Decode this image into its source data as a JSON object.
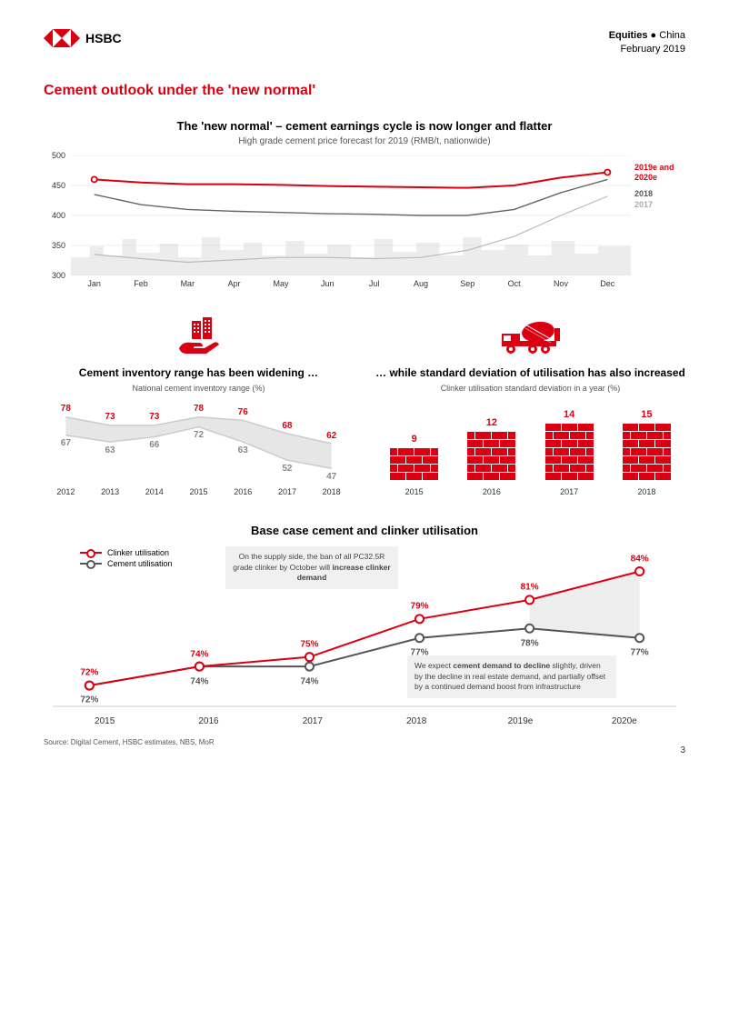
{
  "header": {
    "brand": "HSBC",
    "category": "Equities",
    "region": "China",
    "date": "February 2019"
  },
  "main_title": "Cement outlook under the 'new normal'",
  "chart1": {
    "title": "The 'new normal' – cement earnings cycle is now longer and flatter",
    "subtitle": "High grade cement price forecast for 2019 (RMB/t, nationwide)",
    "ylim": [
      300,
      500
    ],
    "yticks": [
      300,
      350,
      400,
      450,
      500
    ],
    "months": [
      "Jan",
      "Feb",
      "Mar",
      "Apr",
      "May",
      "Jun",
      "Jul",
      "Aug",
      "Sep",
      "Oct",
      "Nov",
      "Dec"
    ],
    "series_2019e": {
      "label": "2019e and 2020e",
      "color": "#db0011",
      "values": [
        460,
        455,
        452,
        452,
        451,
        449,
        448,
        447,
        446,
        450,
        463,
        472
      ]
    },
    "series_2018": {
      "label": "2018",
      "color": "#666666",
      "values": [
        435,
        418,
        410,
        407,
        405,
        403,
        402,
        400,
        400,
        410,
        438,
        460
      ]
    },
    "series_2017": {
      "label": "2017",
      "color": "#bbbbbb",
      "values": [
        335,
        328,
        322,
        326,
        330,
        330,
        328,
        330,
        342,
        365,
        400,
        432
      ]
    },
    "bg_silhouette_color": "#ececec"
  },
  "inventory": {
    "icon_name": "hand-buildings-icon",
    "title": "Cement inventory range has been widening …",
    "subtitle": "National cement inventory range (%)",
    "years": [
      "2012",
      "2013",
      "2014",
      "2015",
      "2016",
      "2017",
      "2018"
    ],
    "high": [
      78,
      73,
      73,
      78,
      76,
      68,
      62
    ],
    "low": [
      67,
      63,
      66,
      72,
      63,
      52,
      47
    ],
    "high_color": "#db0011",
    "low_color": "#888888",
    "fill_color": "#e6e6e6",
    "ylim": [
      40,
      85
    ]
  },
  "utilisation_sd": {
    "icon_name": "cement-truck-icon",
    "title": "… while standard deviation of utilisation has also increased",
    "subtitle": "Clinker utilisation standard deviation in a year (%)",
    "years": [
      "2015",
      "2016",
      "2017",
      "2018"
    ],
    "values": [
      9,
      12,
      14,
      15
    ],
    "color": "#db0011"
  },
  "chart3": {
    "title": "Base case cement and clinker utilisation",
    "years": [
      "2015",
      "2016",
      "2017",
      "2018",
      "2019e",
      "2020e"
    ],
    "clinker": {
      "label": "Clinker utilisation",
      "color": "#db0011",
      "values": [
        72,
        74,
        75,
        79,
        81,
        84
      ]
    },
    "cement": {
      "label": "Cement utilisation",
      "color": "#555555",
      "values": [
        72,
        74,
        74,
        77,
        78,
        77
      ]
    },
    "ylim": [
      70,
      86
    ],
    "annot1": "On the supply side, the ban of all PC32.5R grade clinker by October will",
    "annot1_bold": "increase clinker demand",
    "annot2_lead": "We expect",
    "annot2_bold": "cement demand to decline",
    "annot2_rest": "slightly, driven by the decline in real estate demand, and partially offset by a continued demand boost from infrastructure"
  },
  "source": "Source:  Digital Cement, HSBC estimates, NBS, MoR",
  "page_number": "3"
}
